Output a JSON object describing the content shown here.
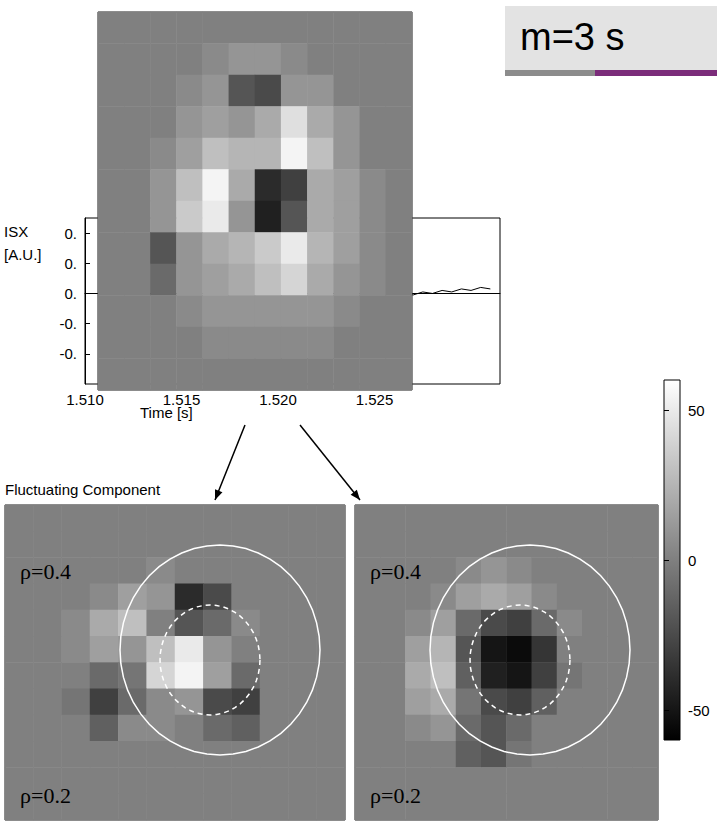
{
  "title": "m=3 s",
  "colorbar": {
    "range": [
      -60,
      60
    ],
    "ticks": [
      50,
      0,
      -50
    ]
  },
  "chart_data": [
    {
      "type": "line",
      "color": "#000000",
      "x_label": "Time [s]",
      "y_label": "ISX [A.U.]",
      "x": [
        1.5265,
        1.527,
        1.5275,
        1.528,
        1.5285,
        1.529,
        1.5295,
        1.53,
        1.5305,
        1.531
      ],
      "values": [
        0.0,
        -0.005,
        0.005,
        0.0,
        0.01,
        0.005,
        0.015,
        0.01,
        0.02,
        0.015
      ],
      "xlim": [
        1.51,
        1.5315
      ],
      "xticks": [
        {
          "value": 1.51,
          "label": "1.510"
        },
        {
          "value": 1.515,
          "label": "1.515"
        },
        {
          "value": 1.52,
          "label": "1.520"
        },
        {
          "value": 1.525,
          "label": "1.525"
        }
      ],
      "ylim": [
        -0.3,
        0.25
      ],
      "yticks": [
        {
          "value": 0.2,
          "label": "0."
        },
        {
          "value": 0.1,
          "label": "0."
        },
        {
          "value": 0,
          "label": "0."
        },
        {
          "value": -0.1,
          "label": "-0."
        },
        {
          "value": -0.2,
          "label": "-0."
        }
      ]
    },
    {
      "type": "heatmap",
      "tick_labels": false,
      "cells": [
        [
          0,
          0,
          0,
          0,
          0,
          0,
          0,
          0,
          0,
          0,
          0,
          0
        ],
        [
          0,
          0,
          0,
          0,
          5,
          10,
          10,
          5,
          0,
          0,
          0,
          0
        ],
        [
          0,
          0,
          0,
          5,
          10,
          -20,
          -25,
          10,
          10,
          0,
          0,
          0
        ],
        [
          0,
          0,
          0,
          10,
          15,
          10,
          20,
          45,
          20,
          10,
          0,
          0
        ],
        [
          0,
          0,
          5,
          15,
          30,
          25,
          25,
          55,
          30,
          10,
          0,
          0
        ],
        [
          0,
          0,
          10,
          30,
          55,
          20,
          -40,
          -30,
          20,
          15,
          5,
          0
        ],
        [
          0,
          0,
          10,
          35,
          50,
          10,
          -45,
          -20,
          20,
          15,
          5,
          0
        ],
        [
          0,
          0,
          -20,
          10,
          20,
          25,
          35,
          50,
          25,
          15,
          5,
          0
        ],
        [
          0,
          0,
          -10,
          10,
          15,
          20,
          30,
          40,
          20,
          10,
          5,
          0
        ],
        [
          0,
          0,
          0,
          5,
          10,
          10,
          10,
          10,
          10,
          5,
          0,
          0
        ],
        [
          0,
          0,
          0,
          0,
          5,
          5,
          5,
          5,
          5,
          0,
          0,
          0
        ],
        [
          0,
          0,
          0,
          0,
          0,
          0,
          0,
          0,
          0,
          0,
          0,
          0
        ]
      ]
    },
    {
      "type": "heatmap",
      "tick_labels": false,
      "title": "Fluctuating Component",
      "annotations": [
        "ρ=0.4",
        "ρ=0.2"
      ],
      "cells": [
        [
          0,
          0,
          0,
          0,
          0,
          0,
          0,
          0,
          0,
          0,
          0,
          0
        ],
        [
          0,
          0,
          0,
          0,
          0,
          0,
          0,
          0,
          0,
          0,
          0,
          0
        ],
        [
          0,
          0,
          0,
          0,
          0,
          5,
          0,
          0,
          0,
          0,
          0,
          0
        ],
        [
          0,
          0,
          0,
          5,
          15,
          10,
          -40,
          -25,
          0,
          0,
          0,
          0
        ],
        [
          0,
          0,
          5,
          20,
          30,
          0,
          -20,
          -10,
          5,
          0,
          0,
          0
        ],
        [
          0,
          0,
          5,
          15,
          10,
          30,
          50,
          10,
          0,
          0,
          0,
          0
        ],
        [
          0,
          0,
          0,
          -10,
          -5,
          40,
          55,
          15,
          -10,
          0,
          0,
          0
        ],
        [
          0,
          0,
          -5,
          -30,
          -10,
          5,
          10,
          -25,
          -30,
          0,
          0,
          0
        ],
        [
          0,
          0,
          0,
          -15,
          5,
          5,
          0,
          -10,
          -15,
          0,
          0,
          0
        ],
        [
          0,
          0,
          0,
          0,
          0,
          0,
          0,
          0,
          0,
          0,
          0,
          0
        ],
        [
          0,
          0,
          0,
          0,
          0,
          0,
          0,
          0,
          0,
          0,
          0,
          0
        ],
        [
          0,
          0,
          0,
          0,
          0,
          0,
          0,
          0,
          0,
          0,
          0,
          0
        ]
      ]
    },
    {
      "type": "heatmap",
      "tick_labels": false,
      "annotations": [
        "ρ=0.4",
        "ρ=0.2"
      ],
      "cells": [
        [
          0,
          0,
          0,
          0,
          0,
          0,
          0,
          0,
          0,
          0,
          0,
          0
        ],
        [
          0,
          0,
          0,
          0,
          0,
          0,
          0,
          0,
          0,
          0,
          0,
          0
        ],
        [
          0,
          0,
          0,
          0,
          5,
          10,
          5,
          0,
          0,
          0,
          0,
          0
        ],
        [
          0,
          0,
          0,
          5,
          15,
          20,
          15,
          5,
          0,
          0,
          0,
          0
        ],
        [
          0,
          0,
          5,
          15,
          -10,
          -25,
          -30,
          -10,
          5,
          0,
          0,
          0
        ],
        [
          0,
          0,
          15,
          25,
          -20,
          -50,
          -55,
          -35,
          0,
          0,
          0,
          0
        ],
        [
          0,
          0,
          20,
          30,
          -15,
          -45,
          -50,
          -30,
          -5,
          0,
          0,
          0
        ],
        [
          0,
          0,
          15,
          20,
          -5,
          -25,
          -30,
          -15,
          0,
          0,
          0,
          0
        ],
        [
          0,
          0,
          5,
          10,
          -10,
          -20,
          -10,
          0,
          0,
          0,
          0,
          0
        ],
        [
          0,
          0,
          0,
          0,
          -15,
          -20,
          -5,
          0,
          0,
          0,
          0,
          0
        ],
        [
          0,
          0,
          0,
          0,
          0,
          0,
          0,
          0,
          0,
          0,
          0,
          0
        ],
        [
          0,
          0,
          0,
          0,
          0,
          0,
          0,
          0,
          0,
          0,
          0,
          0
        ]
      ]
    }
  ]
}
